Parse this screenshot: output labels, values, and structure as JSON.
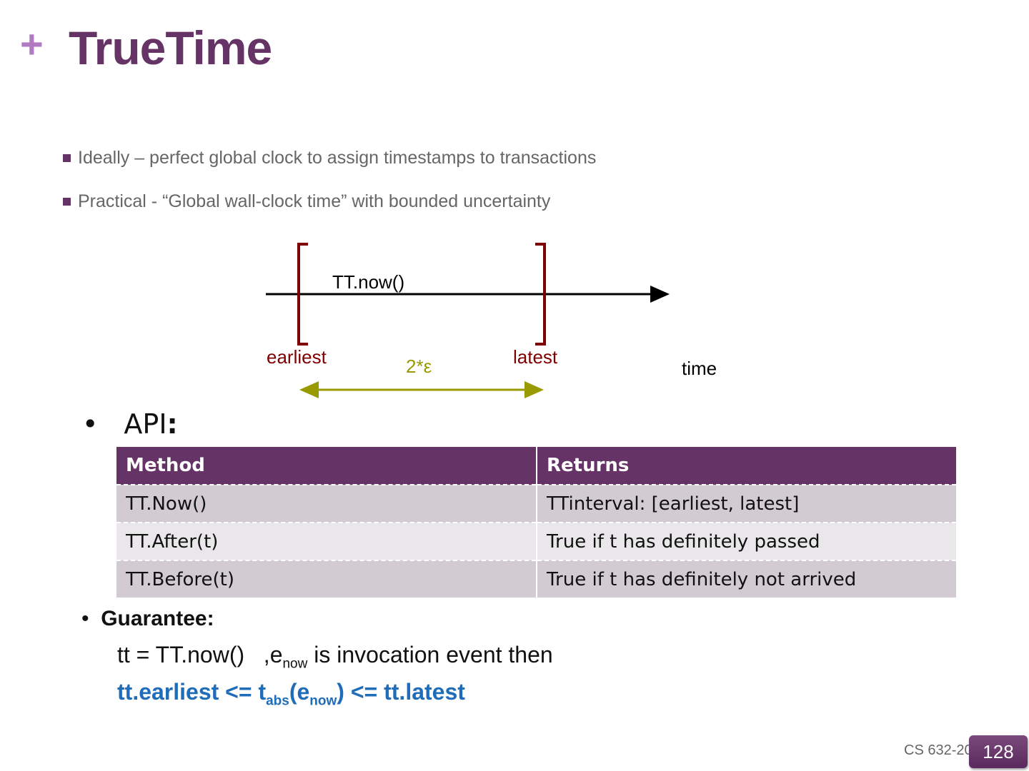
{
  "slide": {
    "title_marker": "+",
    "title": "TrueTime",
    "bullets": [
      "Ideally – perfect global clock to assign timestamps to transactions",
      "Practical - “Global wall-clock time” with bounded uncertainty"
    ],
    "diagram": {
      "now_label": "TT.now()",
      "earliest_label": "earliest",
      "latest_label": "latest",
      "epsilon_label": "2*ε",
      "time_label": "time",
      "colors": {
        "bracket": "#7f0000",
        "epsilon": "#999900",
        "axis": "#000000"
      }
    },
    "api": {
      "bullet": "•",
      "label": "API",
      "colon": ":",
      "table": {
        "headers": [
          "Method",
          "Returns"
        ],
        "rows": [
          [
            "TT.Now()",
            "TTinterval: [earliest, latest]"
          ],
          [
            "TT.After(t)",
            "True if t has definitely passed"
          ],
          [
            "TT.Before(t)",
            "True if t has definitely not arrived"
          ]
        ]
      }
    },
    "guarantee": {
      "bullet": "•",
      "label": "Guarantee:",
      "line1_a": "tt = TT.now()   ,e",
      "line1_sub": "now",
      "line1_b": " is invocation event then",
      "line2_a": "tt.earliest <= t",
      "line2_sub1": "abs",
      "line2_b": "(e",
      "line2_sub2": "now",
      "line2_c": ") <= tt.latest"
    },
    "footer": "CS 632-20",
    "page_number": "128",
    "colors": {
      "accent": "#663366",
      "highlight": "#1f6db8"
    }
  }
}
